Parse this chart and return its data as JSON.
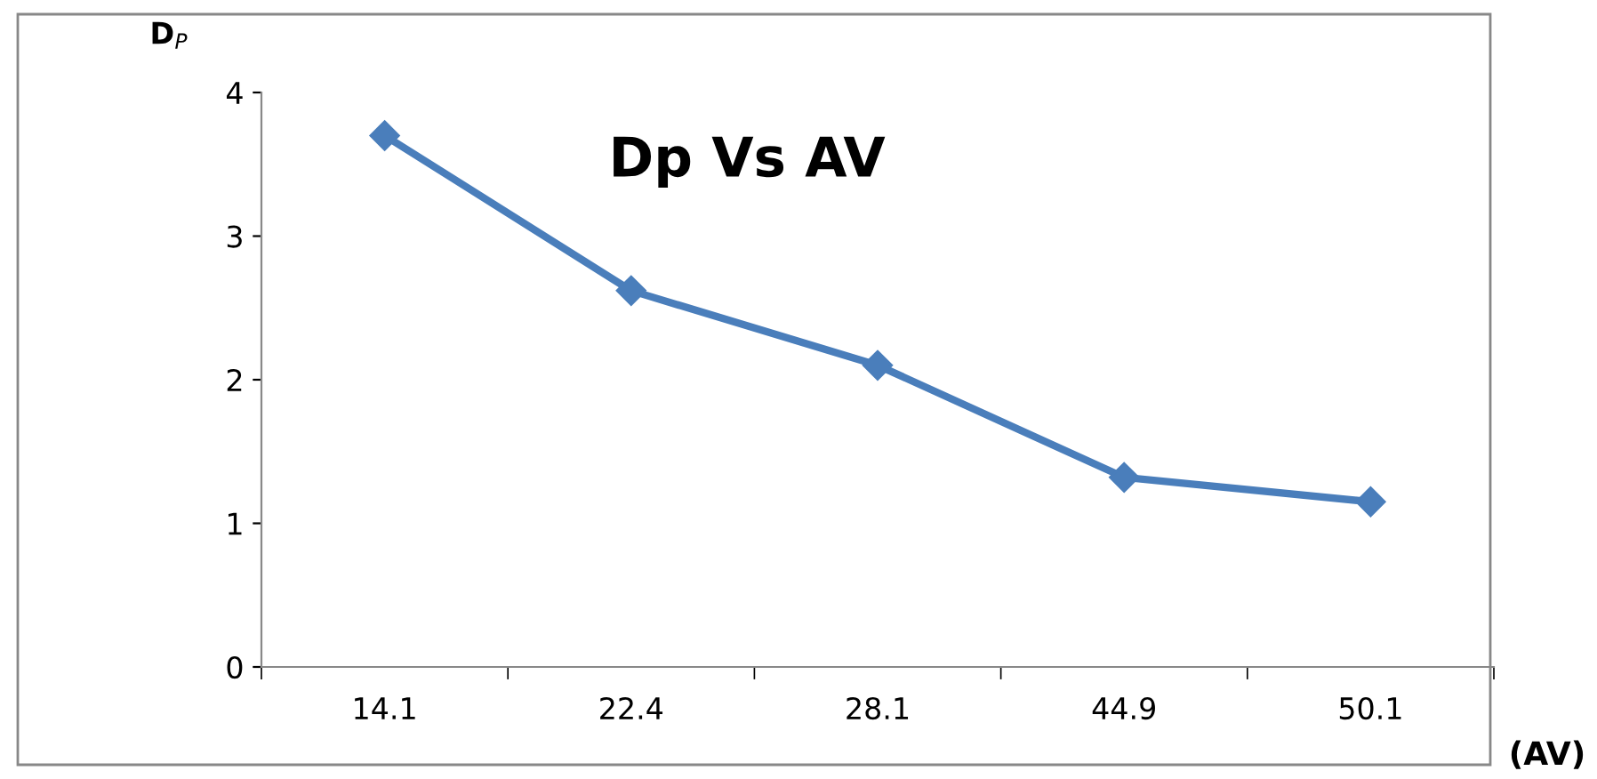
{
  "chart_data": {
    "type": "line",
    "title": "Dp Vs AV",
    "xlabel": "(AV)",
    "ylabel": "D$_{P}$",
    "categories": [
      "14.1",
      "22.4",
      "28.1",
      "44.9",
      "50.1"
    ],
    "series": [
      {
        "color": "#4a7ebb",
        "values": [
          3.7,
          2.62,
          2.1,
          1.32,
          1.15
        ]
      }
    ],
    "ylim": [
      0,
      4
    ],
    "yticks": [
      0,
      1,
      2,
      3,
      4
    ],
    "grid": false,
    "legend": false,
    "marker": "diamond",
    "line_style": "solid"
  }
}
